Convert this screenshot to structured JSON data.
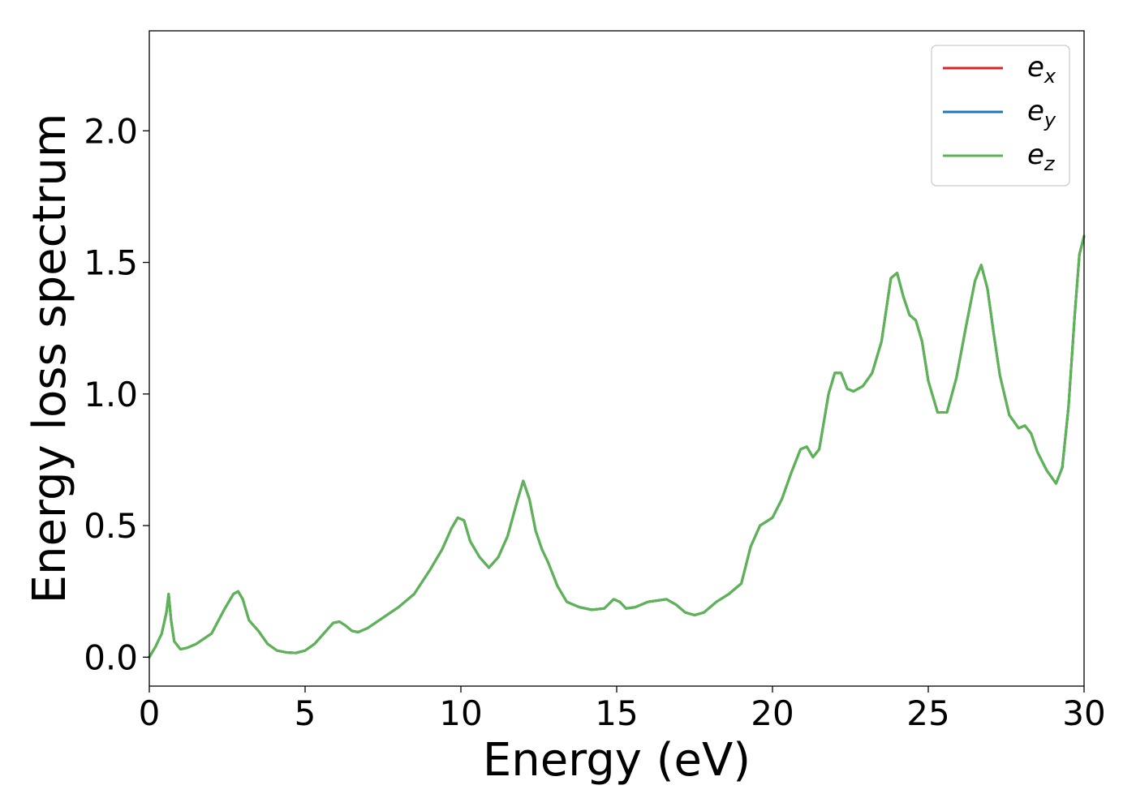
{
  "chart_data": {
    "type": "line",
    "xlabel": "Energy (eV)",
    "ylabel": "Energy loss spectrum",
    "xlim": [
      0,
      30
    ],
    "ylim": [
      -0.11,
      2.38
    ],
    "xticks": [
      0,
      5,
      10,
      15,
      20,
      25,
      30
    ],
    "xtick_labels": [
      "0",
      "5",
      "10",
      "15",
      "20",
      "25",
      "30"
    ],
    "yticks": [
      0.0,
      0.5,
      1.0,
      1.5,
      2.0
    ],
    "ytick_labels": [
      "0.0",
      "0.5",
      "1.0",
      "1.5",
      "2.0"
    ],
    "grid": false,
    "legend_position": "top-right",
    "x": [
      0,
      0.2,
      0.4,
      0.55,
      0.62,
      0.7,
      0.8,
      1.0,
      1.2,
      1.5,
      2.0,
      2.4,
      2.7,
      2.85,
      3.0,
      3.2,
      3.5,
      3.8,
      4.1,
      4.4,
      4.7,
      5.0,
      5.3,
      5.6,
      5.9,
      6.1,
      6.3,
      6.5,
      6.7,
      7.0,
      7.5,
      8.0,
      8.5,
      9.0,
      9.4,
      9.7,
      9.9,
      10.1,
      10.3,
      10.6,
      10.9,
      11.2,
      11.5,
      11.8,
      12.0,
      12.2,
      12.4,
      12.6,
      12.8,
      13.1,
      13.4,
      13.8,
      14.2,
      14.6,
      14.9,
      15.1,
      15.3,
      15.6,
      16.0,
      16.3,
      16.6,
      16.9,
      17.2,
      17.5,
      17.8,
      18.2,
      18.6,
      19.0,
      19.3,
      19.6,
      20.0,
      20.3,
      20.6,
      20.9,
      21.1,
      21.3,
      21.5,
      21.8,
      22.0,
      22.2,
      22.4,
      22.6,
      22.9,
      23.2,
      23.5,
      23.8,
      24.0,
      24.2,
      24.4,
      24.6,
      24.8,
      25.0,
      25.3,
      25.6,
      25.9,
      26.2,
      26.5,
      26.7,
      26.9,
      27.1,
      27.3,
      27.6,
      27.9,
      28.1,
      28.3,
      28.5,
      28.8,
      29.1,
      29.3,
      29.5,
      29.7,
      29.85,
      30.0
    ],
    "series": [
      {
        "name": "e_x",
        "label_base": "e",
        "label_sub": "x",
        "color": "#d62728",
        "values": [
          0.0,
          0.04,
          0.09,
          0.17,
          0.24,
          0.14,
          0.06,
          0.03,
          0.035,
          0.05,
          0.09,
          0.18,
          0.24,
          0.25,
          0.22,
          0.14,
          0.1,
          0.05,
          0.025,
          0.018,
          0.016,
          0.025,
          0.05,
          0.09,
          0.13,
          0.135,
          0.12,
          0.1,
          0.095,
          0.11,
          0.15,
          0.19,
          0.24,
          0.33,
          0.41,
          0.49,
          0.53,
          0.52,
          0.44,
          0.38,
          0.34,
          0.38,
          0.46,
          0.59,
          0.67,
          0.6,
          0.48,
          0.41,
          0.36,
          0.27,
          0.21,
          0.19,
          0.18,
          0.185,
          0.22,
          0.21,
          0.185,
          0.19,
          0.21,
          0.215,
          0.22,
          0.2,
          0.17,
          0.16,
          0.17,
          0.21,
          0.24,
          0.28,
          0.42,
          0.5,
          0.53,
          0.6,
          0.7,
          0.79,
          0.8,
          0.76,
          0.79,
          1.0,
          1.08,
          1.08,
          1.02,
          1.01,
          1.03,
          1.08,
          1.2,
          1.44,
          1.46,
          1.37,
          1.3,
          1.28,
          1.2,
          1.05,
          0.93,
          0.93,
          1.06,
          1.25,
          1.43,
          1.49,
          1.4,
          1.23,
          1.07,
          0.92,
          0.87,
          0.88,
          0.85,
          0.78,
          0.71,
          0.66,
          0.72,
          0.95,
          1.3,
          1.53,
          1.6
        ]
      },
      {
        "name": "e_y",
        "label_base": "e",
        "label_sub": "y",
        "color": "#1f77b4",
        "values": [
          0.0,
          0.04,
          0.09,
          0.17,
          0.24,
          0.14,
          0.06,
          0.03,
          0.035,
          0.05,
          0.09,
          0.18,
          0.24,
          0.25,
          0.22,
          0.14,
          0.1,
          0.05,
          0.025,
          0.018,
          0.016,
          0.025,
          0.05,
          0.09,
          0.13,
          0.135,
          0.12,
          0.1,
          0.095,
          0.11,
          0.15,
          0.19,
          0.24,
          0.33,
          0.41,
          0.49,
          0.53,
          0.52,
          0.44,
          0.38,
          0.34,
          0.38,
          0.46,
          0.59,
          0.67,
          0.6,
          0.48,
          0.41,
          0.36,
          0.27,
          0.21,
          0.19,
          0.18,
          0.185,
          0.22,
          0.21,
          0.185,
          0.19,
          0.21,
          0.215,
          0.22,
          0.2,
          0.17,
          0.16,
          0.17,
          0.21,
          0.24,
          0.28,
          0.42,
          0.5,
          0.53,
          0.6,
          0.7,
          0.79,
          0.8,
          0.76,
          0.79,
          1.0,
          1.08,
          1.08,
          1.02,
          1.01,
          1.03,
          1.08,
          1.2,
          1.44,
          1.46,
          1.37,
          1.3,
          1.28,
          1.2,
          1.05,
          0.93,
          0.93,
          1.06,
          1.25,
          1.43,
          1.49,
          1.4,
          1.23,
          1.07,
          0.92,
          0.87,
          0.88,
          0.85,
          0.78,
          0.71,
          0.66,
          0.72,
          0.95,
          1.3,
          1.53,
          1.6
        ]
      },
      {
        "name": "e_z",
        "label_base": "e",
        "label_sub": "z",
        "color": "#5ab552",
        "values": [
          0.0,
          0.04,
          0.09,
          0.17,
          0.24,
          0.14,
          0.06,
          0.03,
          0.035,
          0.05,
          0.09,
          0.18,
          0.24,
          0.25,
          0.22,
          0.14,
          0.1,
          0.05,
          0.025,
          0.018,
          0.016,
          0.025,
          0.05,
          0.09,
          0.13,
          0.135,
          0.12,
          0.1,
          0.095,
          0.11,
          0.15,
          0.19,
          0.24,
          0.33,
          0.41,
          0.49,
          0.53,
          0.52,
          0.44,
          0.38,
          0.34,
          0.38,
          0.46,
          0.59,
          0.67,
          0.6,
          0.48,
          0.41,
          0.36,
          0.27,
          0.21,
          0.19,
          0.18,
          0.185,
          0.22,
          0.21,
          0.185,
          0.19,
          0.21,
          0.215,
          0.22,
          0.2,
          0.17,
          0.16,
          0.17,
          0.21,
          0.24,
          0.28,
          0.42,
          0.5,
          0.53,
          0.6,
          0.7,
          0.79,
          0.8,
          0.76,
          0.79,
          1.0,
          1.08,
          1.08,
          1.02,
          1.01,
          1.03,
          1.08,
          1.2,
          1.44,
          1.46,
          1.37,
          1.3,
          1.28,
          1.2,
          1.05,
          0.93,
          0.93,
          1.06,
          1.25,
          1.43,
          1.49,
          1.4,
          1.23,
          1.07,
          0.92,
          0.87,
          0.88,
          0.85,
          0.78,
          0.71,
          0.66,
          0.72,
          0.95,
          1.3,
          1.53,
          1.6
        ]
      }
    ]
  }
}
